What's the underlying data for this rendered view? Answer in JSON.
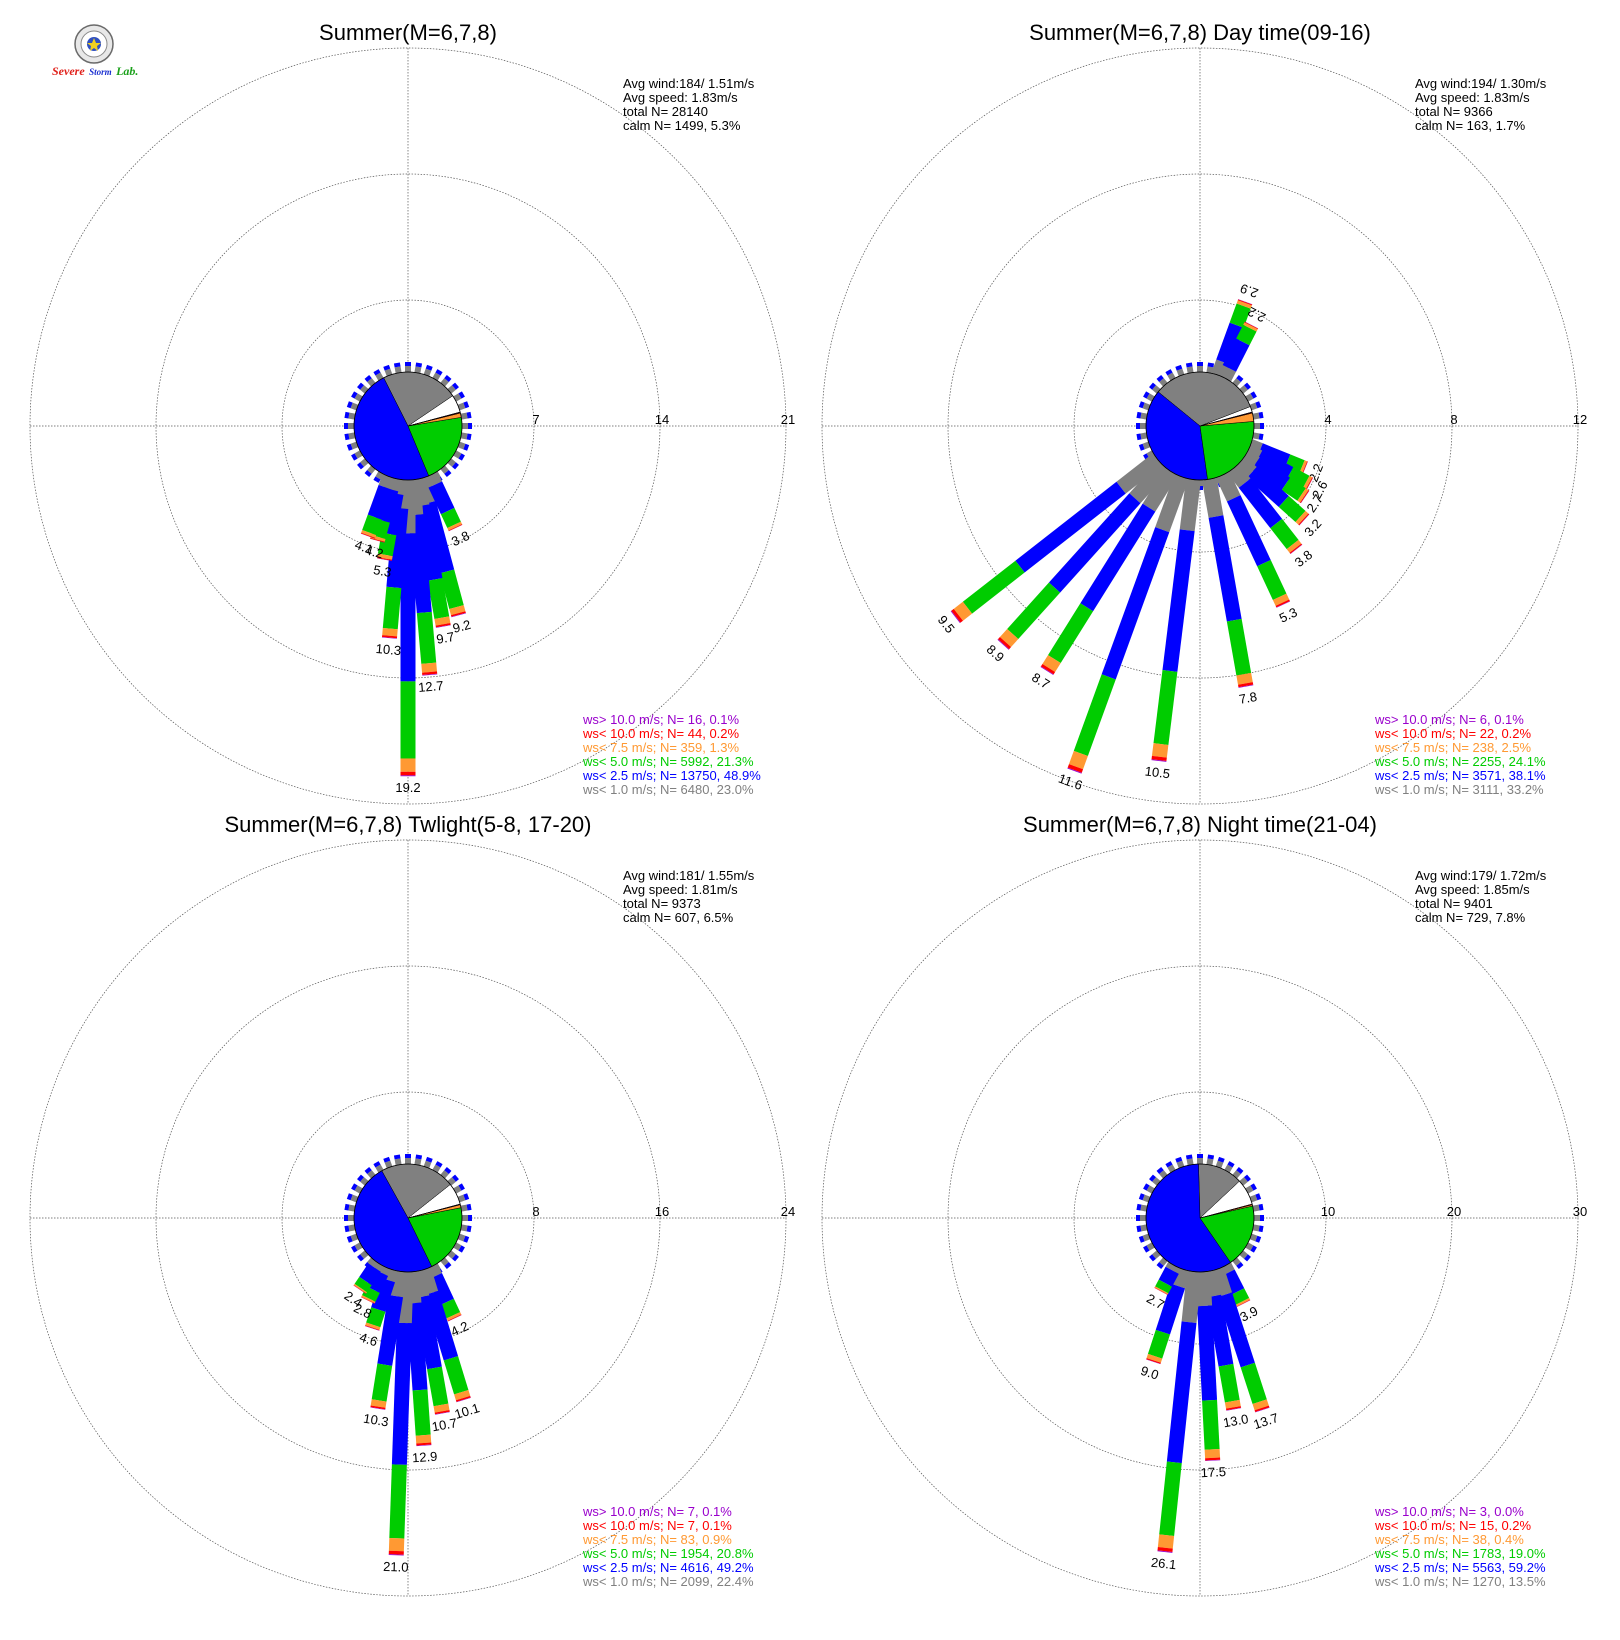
{
  "logo": {
    "text_severe": "Severe",
    "text_storm": "Storm",
    "text_lab": "Lab.",
    "colors": {
      "severe": "#e0201a",
      "storm": "#1a2fd0",
      "lab": "#1aa01a"
    }
  },
  "colors": {
    "ws_gt_10": "#9900cc",
    "ws_lt_10": "#ff0000",
    "ws_lt_7_5": "#ff9933",
    "ws_lt_5": "#00cc00",
    "ws_lt_2_5": "#0000ff",
    "ws_lt_1": "#808080",
    "calm": "#ffffff",
    "grid": "#555555"
  },
  "chart_data": [
    {
      "type": "wind-rose",
      "title": "Summer(M=6,7,8)",
      "rings": [
        7,
        14,
        21
      ],
      "stats": {
        "avg_wind": "Avg wind:184/ 1.51m/s",
        "avg_speed": "Avg speed: 1.83m/s",
        "total": "total N=       28140",
        "calm": "calm N=   1499,   5.3%"
      },
      "legend": [
        {
          "label": "ws> 10.0 m/s; N=     16,  0.1%",
          "color": "#9900cc"
        },
        {
          "label": "ws< 10.0 m/s; N=     44,  0.2%",
          "color": "#ff0000"
        },
        {
          "label": "ws<  7.5 m/s; N=    359,  1.3%",
          "color": "#ff9933"
        },
        {
          "label": "ws<  5.0 m/s; N=  5992, 21.3%",
          "color": "#00cc00"
        },
        {
          "label": "ws<  2.5 m/s; N= 13750, 48.9%",
          "color": "#0000ff"
        },
        {
          "label": "ws<  1.0 m/s; N=  6480, 23.0%",
          "color": "#808080"
        }
      ],
      "pie": {
        "calm": 5.3,
        "ws_lt_1": 23.0,
        "ws_lt_2_5": 48.9,
        "ws_lt_5": 21.3,
        "ws_lt_7_5": 1.3,
        "ws_lt_10": 0.2,
        "ws_gt_10": 0.1
      },
      "bars": [
        {
          "dir": 165,
          "value": 9.2,
          "label": "9.2"
        },
        {
          "dir": 170,
          "value": 9.7,
          "label": "9.7"
        },
        {
          "dir": 175,
          "value": 12.7,
          "label": "12.7"
        },
        {
          "dir": 180,
          "value": 19.2,
          "label": "19.2"
        },
        {
          "dir": 185,
          "value": 10.3,
          "label": "10.3"
        },
        {
          "dir": 190,
          "value": 5.3,
          "label": "5.3"
        },
        {
          "dir": 195,
          "value": 4.2,
          "label": "4.2"
        },
        {
          "dir": 200,
          "value": 4.1,
          "label": "4.1"
        },
        {
          "dir": 155,
          "value": 3.8,
          "label": "3.8"
        }
      ]
    },
    {
      "type": "wind-rose",
      "title": "Summer(M=6,7,8) Day time(09-16)",
      "rings": [
        4,
        8,
        12
      ],
      "stats": {
        "avg_wind": "Avg wind:194/ 1.30m/s",
        "avg_speed": "Avg speed: 1.83m/s",
        "total": "total N=        9366",
        "calm": "calm N=    163,   1.7%"
      },
      "legend": [
        {
          "label": "ws> 10.0 m/s; N=      6,  0.1%",
          "color": "#9900cc"
        },
        {
          "label": "ws< 10.0 m/s; N=     22,  0.2%",
          "color": "#ff0000"
        },
        {
          "label": "ws<  7.5 m/s; N=    238,  2.5%",
          "color": "#ff9933"
        },
        {
          "label": "ws<  5.0 m/s; N=  2255, 24.1%",
          "color": "#00cc00"
        },
        {
          "label": "ws<  2.5 m/s; N=  3571, 38.1%",
          "color": "#0000ff"
        },
        {
          "label": "ws<  1.0 m/s; N=  3111, 33.2%",
          "color": "#808080"
        }
      ],
      "pie": {
        "calm": 1.7,
        "ws_lt_1": 33.2,
        "ws_lt_2_5": 38.1,
        "ws_lt_5": 24.1,
        "ws_lt_7_5": 2.5,
        "ws_lt_10": 0.2,
        "ws_gt_10": 0.1
      },
      "bars": [
        {
          "dir": 20,
          "value": 2.9,
          "label": "2.9"
        },
        {
          "dir": 27,
          "value": 2.2,
          "label": "2.2"
        },
        {
          "dir": 112,
          "value": 2.2,
          "label": "2.2"
        },
        {
          "dir": 118,
          "value": 2.6,
          "label": "2.6"
        },
        {
          "dir": 124,
          "value": 2.7,
          "label": "2.7"
        },
        {
          "dir": 132,
          "value": 3.2,
          "label": "3.2"
        },
        {
          "dir": 142,
          "value": 3.8,
          "label": "3.8"
        },
        {
          "dir": 155,
          "value": 5.3,
          "label": "5.3"
        },
        {
          "dir": 170,
          "value": 7.8,
          "label": "7.8"
        },
        {
          "dir": 187,
          "value": 10.5,
          "label": "10.5"
        },
        {
          "dir": 200,
          "value": 11.6,
          "label": "11.6"
        },
        {
          "dir": 212,
          "value": 8.7,
          "label": "8.7"
        },
        {
          "dir": 222,
          "value": 8.9,
          "label": "8.9"
        },
        {
          "dir": 232,
          "value": 9.5,
          "label": "9.5"
        }
      ]
    },
    {
      "type": "wind-rose",
      "title": "Summer(M=6,7,8) Twlight(5-8, 17-20)",
      "rings": [
        8,
        16,
        24
      ],
      "stats": {
        "avg_wind": "Avg wind:181/ 1.55m/s",
        "avg_speed": "Avg speed: 1.81m/s",
        "total": "total N=        9373",
        "calm": "calm N=    607,   6.5%"
      },
      "legend": [
        {
          "label": "ws> 10.0 m/s; N=      7,  0.1%",
          "color": "#9900cc"
        },
        {
          "label": "ws< 10.0 m/s; N=      7,  0.1%",
          "color": "#ff0000"
        },
        {
          "label": "ws<  7.5 m/s; N=     83,  0.9%",
          "color": "#ff9933"
        },
        {
          "label": "ws<  5.0 m/s; N=  1954, 20.8%",
          "color": "#00cc00"
        },
        {
          "label": "ws<  2.5 m/s; N=  4616, 49.2%",
          "color": "#0000ff"
        },
        {
          "label": "ws<  1.0 m/s; N=  2099, 22.4%",
          "color": "#808080"
        }
      ],
      "pie": {
        "calm": 6.5,
        "ws_lt_1": 22.4,
        "ws_lt_2_5": 49.2,
        "ws_lt_5": 20.8,
        "ws_lt_7_5": 0.9,
        "ws_lt_10": 0.1,
        "ws_gt_10": 0.1
      },
      "bars": [
        {
          "dir": 155,
          "value": 4.2,
          "label": "4.2"
        },
        {
          "dir": 163,
          "value": 10.1,
          "label": "10.1"
        },
        {
          "dir": 170,
          "value": 10.7,
          "label": "10.7"
        },
        {
          "dir": 176,
          "value": 12.9,
          "label": "12.9"
        },
        {
          "dir": 182,
          "value": 21.0,
          "label": "21.0"
        },
        {
          "dir": 189,
          "value": 10.3,
          "label": "10.3"
        },
        {
          "dir": 198,
          "value": 4.6,
          "label": "4.6"
        },
        {
          "dir": 206,
          "value": 2.8,
          "label": "2.8"
        },
        {
          "dir": 214,
          "value": 2.4,
          "label": "2.4"
        }
      ]
    },
    {
      "type": "wind-rose",
      "title": "Summer(M=6,7,8) Night time(21-04)",
      "rings": [
        10,
        20,
        30
      ],
      "stats": {
        "avg_wind": "Avg wind:179/ 1.72m/s",
        "avg_speed": "Avg speed: 1.85m/s",
        "total": "total N=        9401",
        "calm": "calm N=    729,   7.8%"
      },
      "legend": [
        {
          "label": "ws> 10.0 m/s; N=      3,  0.0%",
          "color": "#9900cc"
        },
        {
          "label": "ws< 10.0 m/s; N=     15,  0.2%",
          "color": "#ff0000"
        },
        {
          "label": "ws<  7.5 m/s; N=     38,  0.4%",
          "color": "#ff9933"
        },
        {
          "label": "ws<  5.0 m/s; N=  1783, 19.0%",
          "color": "#00cc00"
        },
        {
          "label": "ws<  2.5 m/s; N=  5563, 59.2%",
          "color": "#0000ff"
        },
        {
          "label": "ws<  1.0 m/s; N=  1270, 13.5%",
          "color": "#808080"
        }
      ],
      "pie": {
        "calm": 7.8,
        "ws_lt_1": 13.5,
        "ws_lt_2_5": 59.2,
        "ws_lt_5": 19.0,
        "ws_lt_7_5": 0.4,
        "ws_lt_10": 0.2,
        "ws_gt_10": 0.0
      },
      "bars": [
        {
          "dir": 153,
          "value": 3.9,
          "label": "3.9"
        },
        {
          "dir": 162,
          "value": 13.7,
          "label": "13.7"
        },
        {
          "dir": 170,
          "value": 13.0,
          "label": "13.0"
        },
        {
          "dir": 177,
          "value": 17.5,
          "label": "17.5"
        },
        {
          "dir": 186,
          "value": 26.1,
          "label": "26.1"
        },
        {
          "dir": 198,
          "value": 9.0,
          "label": "9.0"
        },
        {
          "dir": 208,
          "value": 2.7,
          "label": "2.7"
        }
      ]
    }
  ]
}
